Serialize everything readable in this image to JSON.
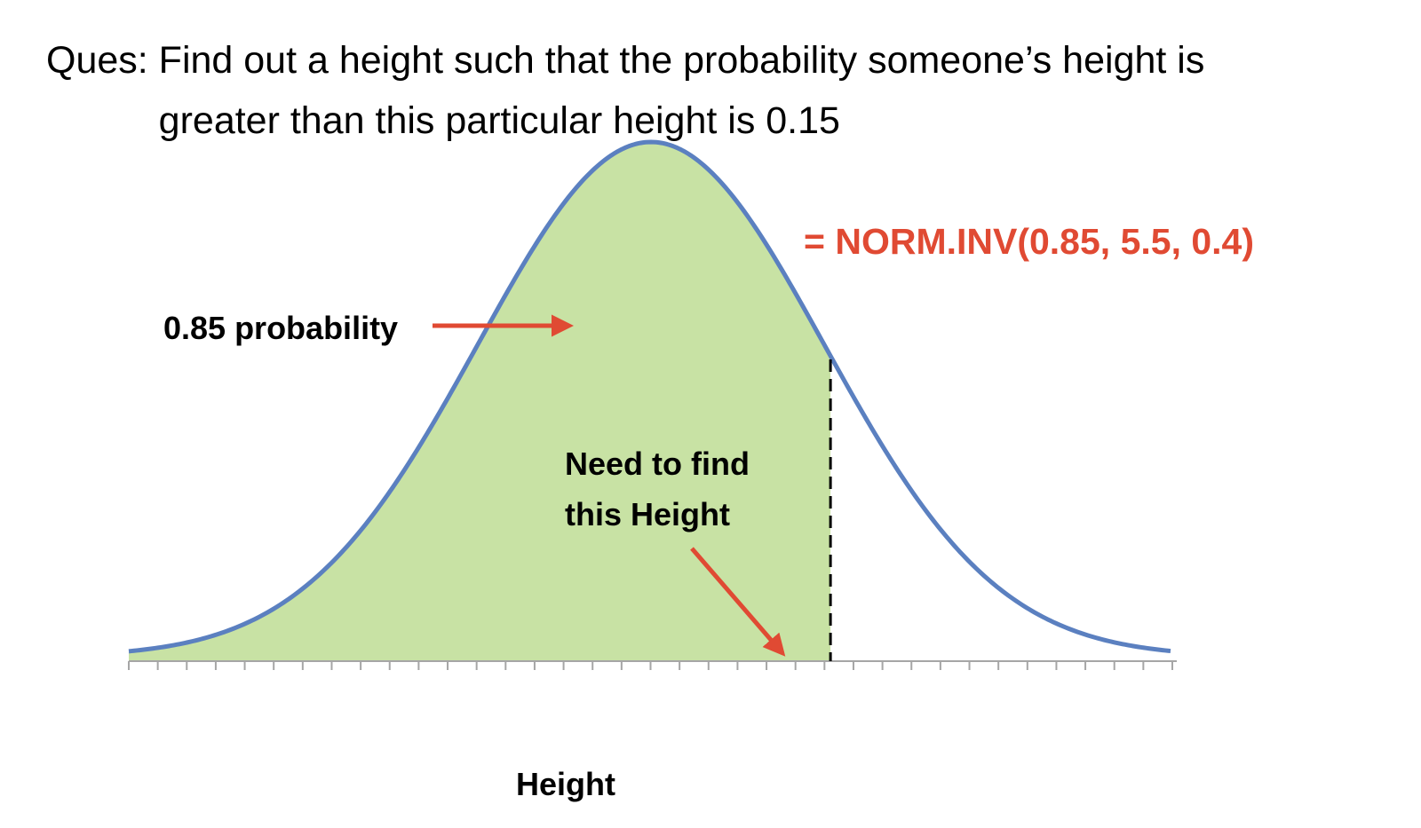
{
  "question": {
    "prefix": "Ques: ",
    "text": "Find out a height such that the probability someone’s height is greater than this particular height is 0.15"
  },
  "formula": "= NORM.INV(0.85, 5.5, 0.4)",
  "probability_label": "0.85 probability",
  "need_to_find": {
    "line1": "Need to find",
    "line2": "this Height"
  },
  "axis_label": "Height",
  "distribution": {
    "mean": 5.5,
    "sd": 0.4,
    "cumulative_probability": 0.85
  },
  "colors": {
    "curve": "#5b80c0",
    "shaded": "#c8e2a4",
    "arrows": "#e04a33",
    "formula": "#e04a33",
    "axis": "#a6a6a6",
    "cutoff_line": "#000000"
  }
}
